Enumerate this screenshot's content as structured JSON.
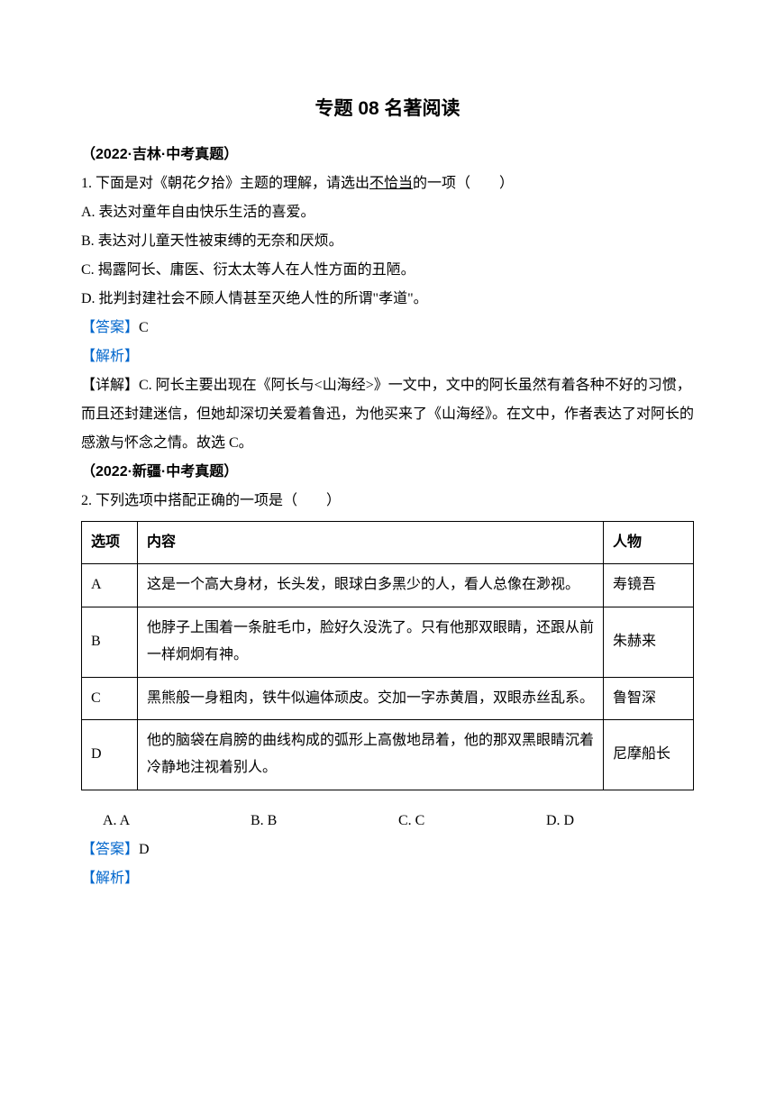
{
  "title": "专题 08  名著阅读",
  "q1": {
    "source": "（2022·吉林·中考真题）",
    "stem_prefix": "1. 下面是对《朝花夕拾》主题的理解，请选出",
    "stem_underline": "不恰当",
    "stem_suffix": "的一项（　　）",
    "optA": "A. 表达对童年自由快乐生活的喜爱。",
    "optB": "B. 表达对儿童天性被束缚的无奈和厌烦。",
    "optC": "C. 揭露阿长、庸医、衍太太等人在人性方面的丑陋。",
    "optD": "D. 批判封建社会不顾人情甚至灭绝人性的所谓\"孝道\"。",
    "answer_label": "【答案】",
    "answer_value": "C",
    "analysis_label": "【解析】",
    "detail": "【详解】C. 阿长主要出现在《阿长与<山海经>》一文中，文中的阿长虽然有着各种不好的习惯，而且还封建迷信，但她却深切关爱着鲁迅，为他买来了《山海经》。在文中，作者表达了对阿长的感激与怀念之情。故选 C。"
  },
  "q2": {
    "source": "（2022·新疆·中考真题）",
    "stem": "2. 下列选项中搭配正确的一项是（　　）",
    "table": {
      "headers": [
        "选项",
        "内容",
        "人物"
      ],
      "rows": [
        {
          "opt": "A",
          "content": "这是一个高大身材，长头发，眼球白多黑少的人，看人总像在渺视。",
          "person": "寿镜吾"
        },
        {
          "opt": "B",
          "content": "他脖子上围着一条脏毛巾，脸好久没洗了。只有他那双眼睛，还跟从前一样炯炯有神。",
          "person": "朱赫来"
        },
        {
          "opt": "C",
          "content": "黑熊般一身粗肉，铁牛似遍体顽皮。交加一字赤黄眉，双眼赤丝乱系。",
          "person": "鲁智深"
        },
        {
          "opt": "D",
          "content": "他的脑袋在肩膀的曲线构成的弧形上高傲地昂着，他的那双黑眼睛沉着冷静地注视着别人。",
          "person": "尼摩船长"
        }
      ]
    },
    "choices": {
      "A": "A. A",
      "B": "B. B",
      "C": "C. C",
      "D": "D. D"
    },
    "answer_label": "【答案】",
    "answer_value": "D",
    "analysis_label": "【解析】"
  }
}
